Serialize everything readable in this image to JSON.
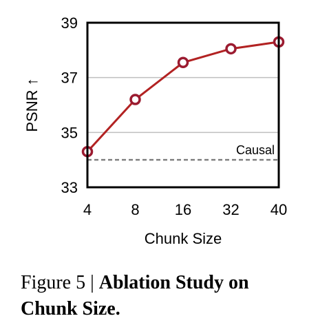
{
  "chart_data": {
    "type": "line",
    "categories": [
      "4",
      "8",
      "16",
      "32",
      "40"
    ],
    "series": [
      {
        "values": [
          34.3,
          36.2,
          37.55,
          38.05,
          38.3
        ],
        "color": "#b22222"
      }
    ],
    "reference_line": {
      "label": "Causal",
      "value": 34.0,
      "style": "dashed",
      "color": "#808080"
    },
    "xlabel": "Chunk Size",
    "ylabel": "PSNR ↑",
    "ylim": [
      33,
      39
    ],
    "yticks": [
      "33",
      "35",
      "37",
      "39"
    ],
    "grid": "horizontal"
  },
  "caption": {
    "figure_number": "Figure 5 | ",
    "title": "Ablation Study on Chunk Size."
  }
}
